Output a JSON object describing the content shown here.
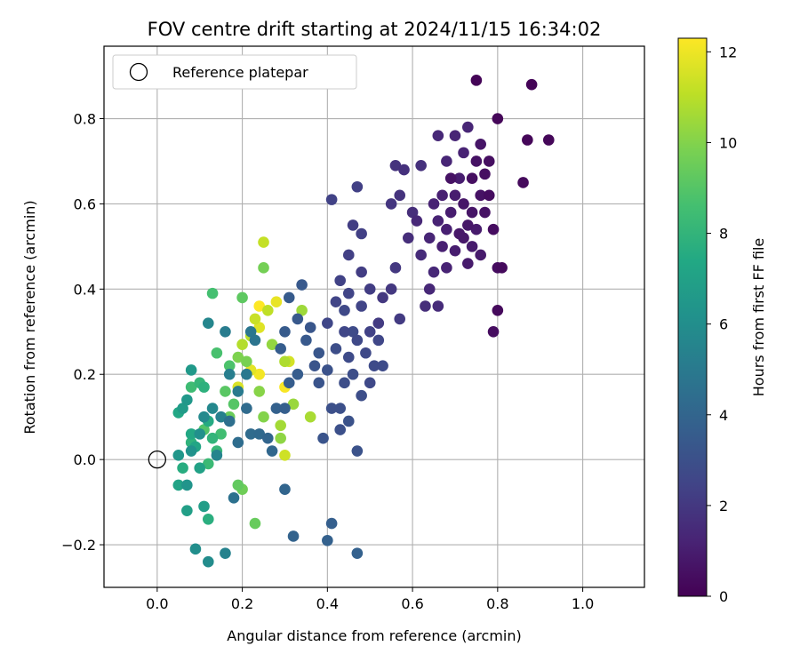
{
  "chart_data": {
    "type": "scatter",
    "title": "FOV centre drift starting at 2024/11/15 16:34:02",
    "xlabel": "Angular distance from reference (arcmin)",
    "ylabel": "Rotation from reference (arcmin)",
    "xlim": [
      -0.125,
      1.145
    ],
    "ylim": [
      -0.3,
      0.97
    ],
    "x_ticks": [
      0.0,
      0.2,
      0.4,
      0.6,
      0.8,
      1.0
    ],
    "x_tick_labels": [
      "0.0",
      "0.2",
      "0.4",
      "0.6",
      "0.8",
      "1.0"
    ],
    "y_ticks": [
      -0.2,
      0.0,
      0.2,
      0.4,
      0.6,
      0.8
    ],
    "y_tick_labels": [
      "−0.2",
      "0.0",
      "0.2",
      "0.4",
      "0.6",
      "0.8"
    ],
    "grid": true,
    "legend": {
      "position": "top-left",
      "entries": [
        {
          "label": "Reference platepar",
          "marker": "open-circle"
        }
      ]
    },
    "reference_point": {
      "x": 0.0,
      "y": 0.0
    },
    "colorbar": {
      "label": "Hours from first FF file",
      "colormap": "viridis",
      "range": [
        0,
        12.3
      ],
      "ticks": [
        0,
        2,
        4,
        6,
        8,
        10,
        12
      ],
      "tick_labels": [
        "0",
        "2",
        "4",
        "6",
        "8",
        "10",
        "12"
      ]
    },
    "points": [
      {
        "x": 0.75,
        "y": 0.89,
        "h": 0.1
      },
      {
        "x": 0.88,
        "y": 0.88,
        "h": 0.1
      },
      {
        "x": 0.92,
        "y": 0.75,
        "h": 0.2
      },
      {
        "x": 0.87,
        "y": 0.75,
        "h": 0.2
      },
      {
        "x": 0.8,
        "y": 0.8,
        "h": 0.2
      },
      {
        "x": 0.86,
        "y": 0.65,
        "h": 0.3
      },
      {
        "x": 0.8,
        "y": 0.35,
        "h": 0.3
      },
      {
        "x": 0.79,
        "y": 0.3,
        "h": 0.4
      },
      {
        "x": 0.81,
        "y": 0.45,
        "h": 0.3
      },
      {
        "x": 0.8,
        "y": 0.45,
        "h": 0.4
      },
      {
        "x": 0.78,
        "y": 0.7,
        "h": 0.5
      },
      {
        "x": 0.77,
        "y": 0.67,
        "h": 0.5
      },
      {
        "x": 0.75,
        "y": 0.7,
        "h": 0.6
      },
      {
        "x": 0.76,
        "y": 0.62,
        "h": 0.6
      },
      {
        "x": 0.74,
        "y": 0.58,
        "h": 0.7
      },
      {
        "x": 0.73,
        "y": 0.55,
        "h": 0.8
      },
      {
        "x": 0.72,
        "y": 0.52,
        "h": 0.8
      },
      {
        "x": 0.74,
        "y": 0.5,
        "h": 0.9
      },
      {
        "x": 0.76,
        "y": 0.48,
        "h": 0.9
      },
      {
        "x": 0.7,
        "y": 0.62,
        "h": 1.0
      },
      {
        "x": 0.69,
        "y": 0.58,
        "h": 1.0
      },
      {
        "x": 0.71,
        "y": 0.66,
        "h": 1.0
      },
      {
        "x": 0.68,
        "y": 0.54,
        "h": 1.1
      },
      {
        "x": 0.67,
        "y": 0.5,
        "h": 1.1
      },
      {
        "x": 0.66,
        "y": 0.56,
        "h": 1.2
      },
      {
        "x": 0.72,
        "y": 0.72,
        "h": 1.2
      },
      {
        "x": 0.73,
        "y": 0.78,
        "h": 1.3
      },
      {
        "x": 0.7,
        "y": 0.76,
        "h": 1.3
      },
      {
        "x": 0.68,
        "y": 0.7,
        "h": 1.3
      },
      {
        "x": 0.65,
        "y": 0.44,
        "h": 1.4
      },
      {
        "x": 0.64,
        "y": 0.4,
        "h": 1.4
      },
      {
        "x": 0.62,
        "y": 0.48,
        "h": 1.5
      },
      {
        "x": 0.66,
        "y": 0.36,
        "h": 1.5
      },
      {
        "x": 0.63,
        "y": 0.36,
        "h": 1.6
      },
      {
        "x": 0.6,
        "y": 0.58,
        "h": 1.6
      },
      {
        "x": 0.59,
        "y": 0.52,
        "h": 1.6
      },
      {
        "x": 0.62,
        "y": 0.69,
        "h": 1.7
      },
      {
        "x": 0.58,
        "y": 0.68,
        "h": 1.7
      },
      {
        "x": 0.56,
        "y": 0.69,
        "h": 1.8
      },
      {
        "x": 0.57,
        "y": 0.62,
        "h": 1.8
      },
      {
        "x": 0.55,
        "y": 0.6,
        "h": 1.9
      },
      {
        "x": 0.56,
        "y": 0.45,
        "h": 2.0
      },
      {
        "x": 0.53,
        "y": 0.38,
        "h": 2.0
      },
      {
        "x": 0.55,
        "y": 0.4,
        "h": 2.0
      },
      {
        "x": 0.57,
        "y": 0.33,
        "h": 2.1
      },
      {
        "x": 0.52,
        "y": 0.32,
        "h": 2.1
      },
      {
        "x": 0.5,
        "y": 0.4,
        "h": 2.2
      },
      {
        "x": 0.48,
        "y": 0.44,
        "h": 2.2
      },
      {
        "x": 0.46,
        "y": 0.55,
        "h": 2.2
      },
      {
        "x": 0.47,
        "y": 0.64,
        "h": 2.3
      },
      {
        "x": 0.48,
        "y": 0.53,
        "h": 2.3
      },
      {
        "x": 0.45,
        "y": 0.48,
        "h": 2.3
      },
      {
        "x": 0.41,
        "y": 0.61,
        "h": 2.4
      },
      {
        "x": 0.43,
        "y": 0.42,
        "h": 2.4
      },
      {
        "x": 0.45,
        "y": 0.39,
        "h": 2.5
      },
      {
        "x": 0.42,
        "y": 0.37,
        "h": 2.5
      },
      {
        "x": 0.4,
        "y": 0.32,
        "h": 2.6
      },
      {
        "x": 0.44,
        "y": 0.3,
        "h": 2.6
      },
      {
        "x": 0.47,
        "y": 0.28,
        "h": 2.7
      },
      {
        "x": 0.49,
        "y": 0.25,
        "h": 2.7
      },
      {
        "x": 0.51,
        "y": 0.22,
        "h": 2.8
      },
      {
        "x": 0.53,
        "y": 0.22,
        "h": 2.8
      },
      {
        "x": 0.46,
        "y": 0.2,
        "h": 2.9
      },
      {
        "x": 0.44,
        "y": 0.18,
        "h": 2.9
      },
      {
        "x": 0.41,
        "y": 0.12,
        "h": 3.0
      },
      {
        "x": 0.43,
        "y": 0.07,
        "h": 3.0
      },
      {
        "x": 0.45,
        "y": 0.09,
        "h": 3.1
      },
      {
        "x": 0.47,
        "y": 0.02,
        "h": 3.1
      },
      {
        "x": 0.39,
        "y": 0.05,
        "h": 3.2
      },
      {
        "x": 0.37,
        "y": 0.22,
        "h": 3.2
      },
      {
        "x": 0.38,
        "y": 0.25,
        "h": 3.3
      },
      {
        "x": 0.36,
        "y": 0.31,
        "h": 3.3
      },
      {
        "x": 0.33,
        "y": 0.33,
        "h": 3.4
      },
      {
        "x": 0.34,
        "y": 0.41,
        "h": 3.4
      },
      {
        "x": 0.31,
        "y": 0.38,
        "h": 3.5
      },
      {
        "x": 0.3,
        "y": 0.3,
        "h": 3.5
      },
      {
        "x": 0.29,
        "y": 0.26,
        "h": 3.6
      },
      {
        "x": 0.31,
        "y": 0.18,
        "h": 3.6
      },
      {
        "x": 0.3,
        "y": 0.12,
        "h": 3.7
      },
      {
        "x": 0.41,
        "y": -0.15,
        "h": 3.7
      },
      {
        "x": 0.4,
        "y": -0.19,
        "h": 3.8
      },
      {
        "x": 0.47,
        "y": -0.22,
        "h": 3.8
      },
      {
        "x": 0.32,
        "y": -0.18,
        "h": 3.9
      },
      {
        "x": 0.3,
        "y": -0.07,
        "h": 4.0
      },
      {
        "x": 0.27,
        "y": 0.02,
        "h": 4.1
      },
      {
        "x": 0.24,
        "y": 0.06,
        "h": 4.2
      },
      {
        "x": 0.22,
        "y": 0.06,
        "h": 4.3
      },
      {
        "x": 0.19,
        "y": 0.04,
        "h": 4.4
      },
      {
        "x": 0.17,
        "y": 0.09,
        "h": 4.5
      },
      {
        "x": 0.18,
        "y": -0.09,
        "h": 4.6
      },
      {
        "x": 0.23,
        "y": 0.28,
        "h": 4.7
      },
      {
        "x": 0.22,
        "y": 0.3,
        "h": 4.8
      },
      {
        "x": 0.21,
        "y": 0.2,
        "h": 4.9
      },
      {
        "x": 0.19,
        "y": 0.16,
        "h": 5.0
      },
      {
        "x": 0.16,
        "y": 0.3,
        "h": 5.1
      },
      {
        "x": 0.17,
        "y": 0.2,
        "h": 5.2
      },
      {
        "x": 0.15,
        "y": 0.1,
        "h": 5.3
      },
      {
        "x": 0.16,
        "y": -0.22,
        "h": 5.4
      },
      {
        "x": 0.14,
        "y": 0.01,
        "h": 5.5
      },
      {
        "x": 0.12,
        "y": 0.32,
        "h": 5.6
      },
      {
        "x": 0.13,
        "y": 0.12,
        "h": 5.7
      },
      {
        "x": 0.11,
        "y": 0.1,
        "h": 5.8
      },
      {
        "x": 0.12,
        "y": -0.24,
        "h": 5.9
      },
      {
        "x": 0.09,
        "y": -0.21,
        "h": 6.0
      },
      {
        "x": 0.1,
        "y": 0.06,
        "h": 6.1
      },
      {
        "x": 0.08,
        "y": 0.02,
        "h": 6.2
      },
      {
        "x": 0.07,
        "y": -0.06,
        "h": 6.3
      },
      {
        "x": 0.05,
        "y": 0.01,
        "h": 6.4
      },
      {
        "x": 0.07,
        "y": 0.14,
        "h": 6.5
      },
      {
        "x": 0.08,
        "y": 0.21,
        "h": 6.6
      },
      {
        "x": 0.06,
        "y": 0.12,
        "h": 6.7
      },
      {
        "x": 0.11,
        "y": -0.11,
        "h": 6.8
      },
      {
        "x": 0.07,
        "y": -0.12,
        "h": 6.9
      },
      {
        "x": 0.1,
        "y": -0.02,
        "h": 7.0
      },
      {
        "x": 0.05,
        "y": -0.06,
        "h": 7.1
      },
      {
        "x": 0.09,
        "y": 0.03,
        "h": 7.2
      },
      {
        "x": 0.05,
        "y": 0.11,
        "h": 7.3
      },
      {
        "x": 0.08,
        "y": 0.06,
        "h": 7.4
      },
      {
        "x": 0.12,
        "y": 0.09,
        "h": 7.5
      },
      {
        "x": 0.06,
        "y": -0.02,
        "h": 7.6
      },
      {
        "x": 0.12,
        "y": -0.14,
        "h": 7.7
      },
      {
        "x": 0.11,
        "y": 0.17,
        "h": 7.8
      },
      {
        "x": 0.08,
        "y": 0.04,
        "h": 7.9
      },
      {
        "x": 0.13,
        "y": 0.05,
        "h": 8.0
      },
      {
        "x": 0.1,
        "y": 0.18,
        "h": 8.1
      },
      {
        "x": 0.14,
        "y": 0.02,
        "h": 8.2
      },
      {
        "x": 0.12,
        "y": -0.01,
        "h": 8.3
      },
      {
        "x": 0.08,
        "y": 0.17,
        "h": 8.4
      },
      {
        "x": 0.15,
        "y": 0.06,
        "h": 8.5
      },
      {
        "x": 0.13,
        "y": 0.39,
        "h": 8.6
      },
      {
        "x": 0.14,
        "y": 0.25,
        "h": 8.7
      },
      {
        "x": 0.17,
        "y": 0.22,
        "h": 8.8
      },
      {
        "x": 0.11,
        "y": 0.07,
        "h": 8.9
      },
      {
        "x": 0.18,
        "y": 0.13,
        "h": 9.0
      },
      {
        "x": 0.16,
        "y": 0.16,
        "h": 9.1
      },
      {
        "x": 0.2,
        "y": 0.38,
        "h": 9.2
      },
      {
        "x": 0.19,
        "y": -0.06,
        "h": 9.3
      },
      {
        "x": 0.23,
        "y": -0.15,
        "h": 9.4
      },
      {
        "x": 0.17,
        "y": 0.1,
        "h": 9.5
      },
      {
        "x": 0.2,
        "y": -0.07,
        "h": 9.6
      },
      {
        "x": 0.25,
        "y": 0.45,
        "h": 9.7
      },
      {
        "x": 0.21,
        "y": 0.23,
        "h": 9.8
      },
      {
        "x": 0.19,
        "y": 0.24,
        "h": 9.9
      },
      {
        "x": 0.25,
        "y": 0.1,
        "h": 10.0
      },
      {
        "x": 0.24,
        "y": 0.16,
        "h": 10.1
      },
      {
        "x": 0.29,
        "y": 0.05,
        "h": 10.2
      },
      {
        "x": 0.27,
        "y": 0.27,
        "h": 10.3
      },
      {
        "x": 0.32,
        "y": 0.13,
        "h": 10.4
      },
      {
        "x": 0.34,
        "y": 0.35,
        "h": 10.5
      },
      {
        "x": 0.29,
        "y": 0.08,
        "h": 10.6
      },
      {
        "x": 0.36,
        "y": 0.1,
        "h": 10.7
      },
      {
        "x": 0.3,
        "y": 0.23,
        "h": 10.8
      },
      {
        "x": 0.2,
        "y": 0.27,
        "h": 10.9
      },
      {
        "x": 0.22,
        "y": 0.29,
        "h": 11.0
      },
      {
        "x": 0.26,
        "y": 0.35,
        "h": 11.1
      },
      {
        "x": 0.25,
        "y": 0.51,
        "h": 11.2
      },
      {
        "x": 0.23,
        "y": 0.33,
        "h": 11.3
      },
      {
        "x": 0.3,
        "y": 0.01,
        "h": 11.4
      },
      {
        "x": 0.31,
        "y": 0.23,
        "h": 11.5
      },
      {
        "x": 0.19,
        "y": 0.17,
        "h": 11.6
      },
      {
        "x": 0.24,
        "y": 0.31,
        "h": 11.7
      },
      {
        "x": 0.22,
        "y": 0.21,
        "h": 11.8
      },
      {
        "x": 0.28,
        "y": 0.37,
        "h": 11.9
      },
      {
        "x": 0.24,
        "y": 0.2,
        "h": 12.1
      },
      {
        "x": 0.3,
        "y": 0.17,
        "h": 12.2
      },
      {
        "x": 0.24,
        "y": 0.36,
        "h": 12.3
      },
      {
        "x": 0.69,
        "y": 0.66,
        "h": 0.6
      },
      {
        "x": 0.72,
        "y": 0.6,
        "h": 0.7
      },
      {
        "x": 0.71,
        "y": 0.53,
        "h": 0.8
      },
      {
        "x": 0.74,
        "y": 0.66,
        "h": 0.5
      },
      {
        "x": 0.77,
        "y": 0.58,
        "h": 0.6
      },
      {
        "x": 0.75,
        "y": 0.54,
        "h": 0.9
      },
      {
        "x": 0.78,
        "y": 0.62,
        "h": 0.4
      },
      {
        "x": 0.7,
        "y": 0.49,
        "h": 1.0
      },
      {
        "x": 0.67,
        "y": 0.62,
        "h": 1.1
      },
      {
        "x": 0.65,
        "y": 0.6,
        "h": 1.2
      },
      {
        "x": 0.64,
        "y": 0.52,
        "h": 1.3
      },
      {
        "x": 0.61,
        "y": 0.56,
        "h": 1.4
      },
      {
        "x": 0.68,
        "y": 0.45,
        "h": 1.2
      },
      {
        "x": 0.73,
        "y": 0.46,
        "h": 0.9
      },
      {
        "x": 0.79,
        "y": 0.54,
        "h": 0.4
      },
      {
        "x": 0.76,
        "y": 0.74,
        "h": 0.7
      },
      {
        "x": 0.66,
        "y": 0.76,
        "h": 1.4
      },
      {
        "x": 0.52,
        "y": 0.28,
        "h": 2.6
      },
      {
        "x": 0.5,
        "y": 0.3,
        "h": 2.4
      },
      {
        "x": 0.48,
        "y": 0.36,
        "h": 2.5
      },
      {
        "x": 0.46,
        "y": 0.3,
        "h": 2.8
      },
      {
        "x": 0.44,
        "y": 0.35,
        "h": 2.7
      },
      {
        "x": 0.42,
        "y": 0.26,
        "h": 2.9
      },
      {
        "x": 0.4,
        "y": 0.21,
        "h": 3.1
      },
      {
        "x": 0.38,
        "y": 0.18,
        "h": 3.2
      },
      {
        "x": 0.43,
        "y": 0.12,
        "h": 3.0
      },
      {
        "x": 0.48,
        "y": 0.15,
        "h": 2.9
      },
      {
        "x": 0.5,
        "y": 0.18,
        "h": 2.7
      },
      {
        "x": 0.45,
        "y": 0.24,
        "h": 2.8
      },
      {
        "x": 0.35,
        "y": 0.28,
        "h": 3.4
      },
      {
        "x": 0.33,
        "y": 0.2,
        "h": 3.6
      },
      {
        "x": 0.28,
        "y": 0.12,
        "h": 3.8
      },
      {
        "x": 0.26,
        "y": 0.05,
        "h": 4.0
      },
      {
        "x": 0.21,
        "y": 0.12,
        "h": 4.3
      }
    ]
  }
}
